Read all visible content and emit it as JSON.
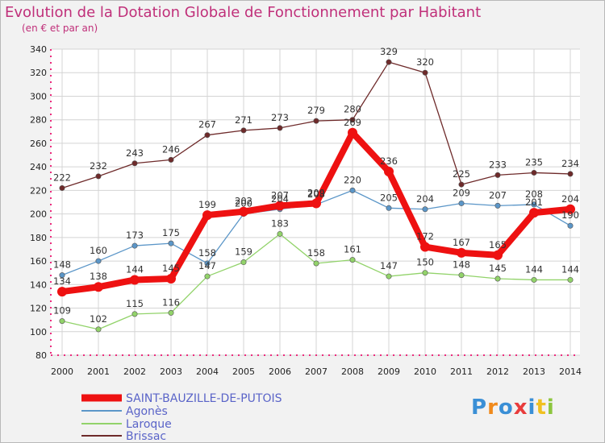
{
  "title": "Evolution de la Dotation Globale de Fonctionnement par Habitant",
  "subtitle": "(en € et par an)",
  "logo": "Proxiti",
  "colors": {
    "title": "#c0307a",
    "saint": "#ee1111",
    "agones": "#5b96c8",
    "laroque": "#92d36a",
    "brissac": "#6e2a2a",
    "axis": "#ec2b7d"
  },
  "chart_data": {
    "type": "line",
    "title": "Evolution de la Dotation Globale de Fonctionnement par Habitant",
    "subtitle": "(en € et par an)",
    "x": [
      2000,
      2001,
      2002,
      2003,
      2004,
      2005,
      2006,
      2007,
      2008,
      2009,
      2010,
      2011,
      2012,
      2013,
      2014
    ],
    "ylim": [
      80,
      340
    ],
    "yticks": [
      80,
      100,
      120,
      140,
      160,
      180,
      200,
      220,
      240,
      260,
      280,
      300,
      320,
      340
    ],
    "grid": true,
    "legend": "bottom-left",
    "series": [
      {
        "key": "saint",
        "name": "SAINT-BAUZILLE-DE-PUTOIS",
        "values": [
          134,
          138,
          144,
          145,
          199,
          202,
          207,
          209,
          269,
          236,
          172,
          167,
          165,
          201,
          204
        ]
      },
      {
        "key": "agones",
        "name": "Agonès",
        "values": [
          148,
          160,
          173,
          175,
          158,
          200,
          204,
          208,
          220,
          205,
          204,
          209,
          207,
          208,
          190
        ]
      },
      {
        "key": "laroque",
        "name": "Laroque",
        "values": [
          109,
          102,
          115,
          116,
          147,
          159,
          183,
          158,
          161,
          147,
          150,
          148,
          145,
          144,
          144
        ]
      },
      {
        "key": "brissac",
        "name": "Brissac",
        "values": [
          222,
          232,
          243,
          246,
          267,
          271,
          273,
          279,
          280,
          329,
          320,
          225,
          233,
          235,
          234
        ]
      }
    ]
  }
}
